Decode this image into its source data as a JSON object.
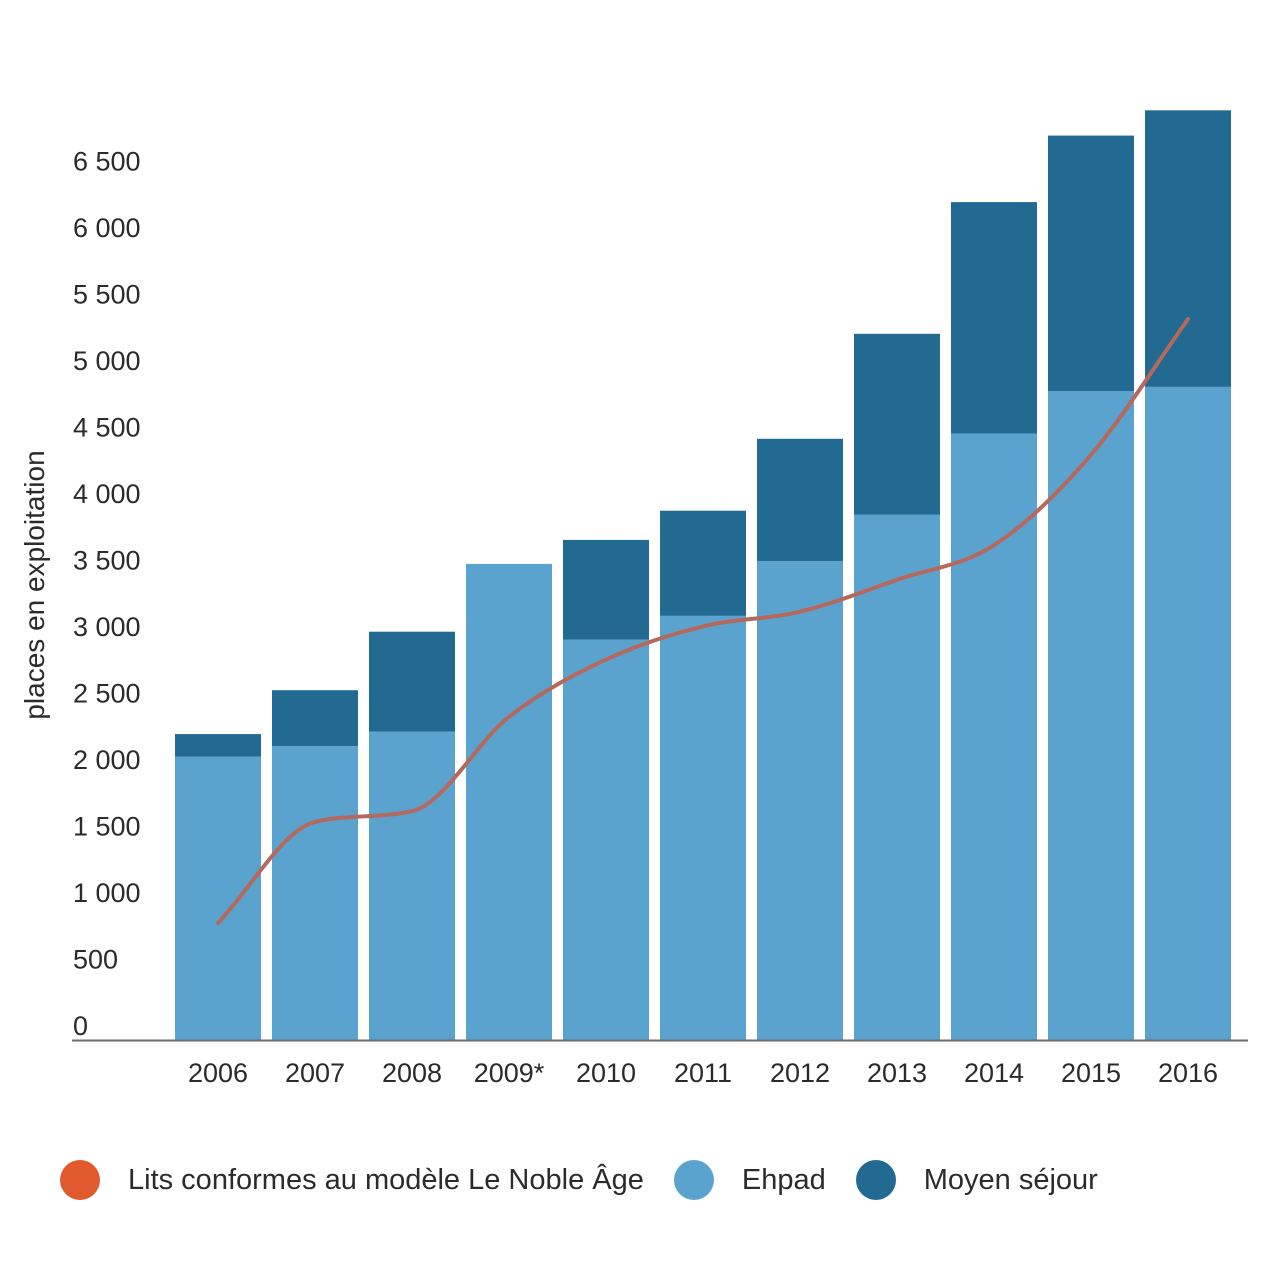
{
  "chart_data": {
    "type": "bar",
    "stacked": true,
    "title": "",
    "xlabel": "",
    "ylabel": "places en exploitation",
    "ylim": [
      0,
      7000
    ],
    "yticks": [
      0,
      500,
      1000,
      1500,
      2000,
      2500,
      3000,
      3500,
      4000,
      4500,
      5000,
      5500,
      6000,
      6500
    ],
    "ytick_labels": [
      "0",
      "500",
      "1 000",
      "1 500",
      "2 000",
      "2 500",
      "3 000",
      "3 500",
      "4 000",
      "4 500",
      "5 000",
      "5 500",
      "6 000",
      "6 500"
    ],
    "grid": false,
    "legend_position": "bottom",
    "categories": [
      "2006",
      "2007",
      "2008",
      "2009*",
      "2010",
      "2011",
      "2012",
      "2013",
      "2014",
      "2015",
      "2016"
    ],
    "series": [
      {
        "name": "Ehpad",
        "kind": "bar",
        "color": "#5ba3cf",
        "values": [
          2130,
          2210,
          2320,
          3580,
          3010,
          3190,
          3600,
          3950,
          4560,
          4880,
          4910
        ]
      },
      {
        "name": "Moyen séjour",
        "kind": "bar",
        "color": "#236a92",
        "values": [
          170,
          420,
          750,
          0,
          750,
          790,
          920,
          1360,
          1740,
          1920,
          2080
        ]
      },
      {
        "name": "Lits conformes au modèle Le Noble Âge",
        "kind": "line",
        "color": "#b5685c",
        "legend_color": "#e05a2e",
        "values": [
          880,
          1640,
          1720,
          2430,
          2860,
          3110,
          3220,
          3460,
          3720,
          4400,
          5420
        ]
      }
    ]
  }
}
